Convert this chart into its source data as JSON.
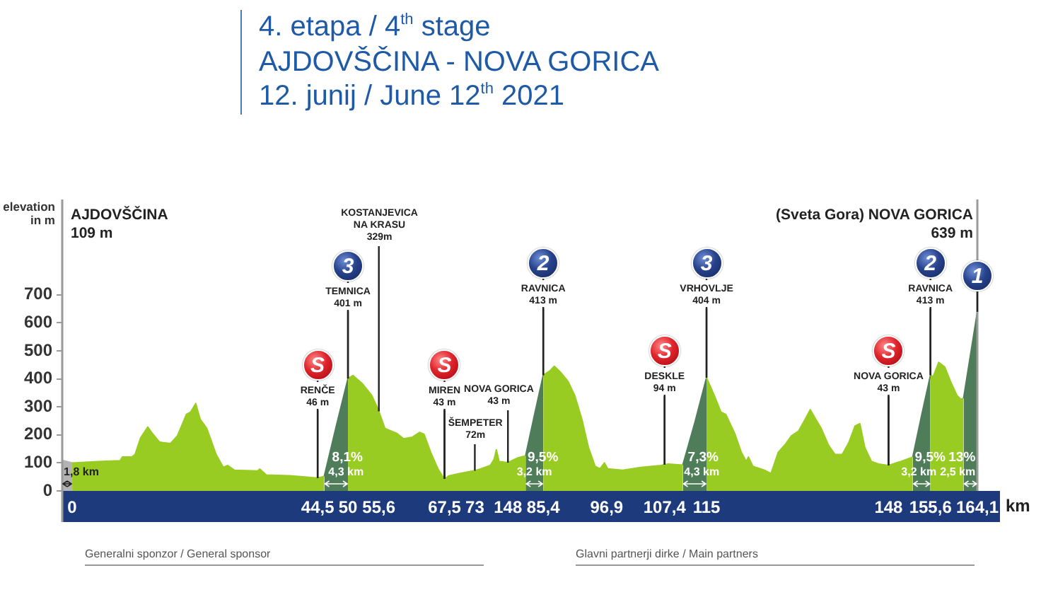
{
  "chart_data": {
    "type": "area",
    "title": "4. etapa / 4$^{th}$ stage",
    "subtitle": "AJDOVŠČINA - NOVA GORICA\n12. junij / June 12$^{th}$ 2021",
    "xlabel": "km",
    "ylabel": "elevation\nin m",
    "xlim": [
      -1.8,
      164.1
    ],
    "xticks": [
      0,
      {
        "value": 44.5,
        "label": "44,5"
      },
      50,
      {
        "value": 55.6,
        "label": "55,6"
      },
      {
        "value": 67.5,
        "label": "67,5"
      },
      73,
      {
        "value": 85.4,
        "label": "85,4"
      },
      {
        "value": 96.9,
        "label": "96,9"
      },
      {
        "value": 107.4,
        "label": "107,4"
      },
      115,
      148,
      {
        "value": 155.6,
        "label": "155,6"
      },
      {
        "value": 164.1,
        "label": "164,1"
      }
    ],
    "ylim": [
      0,
      1040
    ],
    "yticks": [
      0,
      100,
      200,
      300,
      400,
      500,
      600,
      700
    ],
    "series": [
      {
        "name": "1,8 km",
        "color": "#b3b3b3",
        "x": [
          -1.8,
          0
        ],
        "values": [
          109,
          100
        ]
      },
      {
        "color": "#99cc22",
        "x": [
          0,
          4.6,
          8.7,
          9.1,
          10.8,
          11.4,
          12.4,
          13.7,
          14.5,
          15.8,
          16.6,
          17.8,
          19.1,
          20.7,
          21.5,
          22.4,
          23.2,
          24.4,
          26.1,
          27.4,
          28.2,
          29.4,
          33.6,
          34,
          35.2,
          39.4,
          41,
          44.5,
          45.7,
          47.8,
          50,
          50.9,
          52.6,
          54.3,
          55.5,
          55.6,
          56.7,
          58.8,
          60.1,
          61.7,
          63,
          63.8,
          65,
          66.3,
          67.1,
          67.5,
          68.3,
          70,
          72.5,
          73,
          74.1,
          75.8,
          76.5,
          76.9,
          77.4,
          79,
          80.8,
          82.2,
          83.8,
          85.4,
          86.6,
          87.4,
          88.6,
          89.9,
          91.1,
          92.4,
          93.6,
          94.8,
          95.7,
          96.5,
          97.1,
          99.8,
          103.1,
          106.8,
          107.4,
          108.1,
          110.7,
          112.9,
          115,
          116.4,
          117.6,
          118.5,
          120.1,
          121.3,
          122.2,
          122.6,
          123.4,
          125.5,
          126.7,
          128,
          129.2,
          130.4,
          131.7,
          132.9,
          133.8,
          134.8,
          135.8,
          137.1,
          138.3,
          139.6,
          140.8,
          141.9,
          142.8,
          143.7,
          144.9,
          146.2,
          148,
          150.2,
          152.4,
          154,
          155.6,
          156.1,
          157.1,
          158.2,
          159.4,
          160.4,
          161.1,
          161.6
        ],
        "values": [
          100,
          105,
          108,
          121,
          121,
          130,
          189,
          228,
          206,
          175,
          172,
          169,
          197,
          273,
          282,
          312,
          256,
          223,
          130,
          84,
          91,
          74,
          71,
          78,
          57,
          54,
          52,
          46,
          52,
          null,
          401,
          412,
          383,
          341,
          290,
          284,
          223,
          206,
          186,
          192,
          209,
          202,
          138,
          79,
          54,
          43,
          54,
          61,
          71,
          72,
          79,
          91,
          113,
          147,
          105,
          101,
          118,
          125,
          null,
          413,
          428,
          445,
          422,
          391,
          341,
          256,
          155,
          88,
          79,
          100,
          79,
          74,
          84,
          91,
          94,
          96,
          92,
          null,
          404,
          341,
          282,
          273,
          206,
          138,
          105,
          121,
          88,
          74,
          62,
          138,
          164,
          197,
          214,
          256,
          290,
          256,
          223,
          164,
          130,
          130,
          172,
          231,
          240,
          155,
          105,
          96,
          91,
          105,
          121,
          null,
          413,
          408,
          459,
          442,
          383,
          341,
          327,
          330
        ]
      },
      {
        "name": "8,1%\n4,3 km",
        "color": "#4f7d5a",
        "x": [
          45.7,
          47.8,
          50
        ],
        "values": [
          52,
          225,
          401
        ]
      },
      {
        "name": "9,5%\n3,2 km",
        "color": "#4f7d5a",
        "x": [
          82.2,
          83.8,
          85.4
        ],
        "values": [
          125,
          270,
          413
        ]
      },
      {
        "name": "7,3%\n4,3 km",
        "color": "#4f7d5a",
        "x": [
          110.7,
          112.9,
          115
        ],
        "values": [
          92,
          245,
          404
        ]
      },
      {
        "name": "9,5%\n3,2 km",
        "color": "#4f7d5a",
        "x": [
          152.4,
          154,
          155.6
        ],
        "values": [
          121,
          270,
          413
        ]
      },
      {
        "name": "13%\n2,5 km",
        "color": "#4f7d5a",
        "x": [
          161.6,
          164.1
        ],
        "values": [
          330,
          639
        ]
      }
    ],
    "annotations": [
      {
        "text": "S",
        "x": 44.5,
        "y": 46
      },
      {
        "text": "RENČE\n46 m",
        "x": 44.5,
        "y": 46
      },
      {
        "text": "3",
        "x": 50,
        "y": 401
      },
      {
        "text": "TEMNICA\n401 m",
        "x": 50,
        "y": 401
      },
      {
        "text": "KOSTANJEVICA\nNA KRASU\n329m",
        "x": 55.6,
        "y": 284
      },
      {
        "text": "S",
        "x": 67.5,
        "y": 43
      },
      {
        "text": "MIREN\n43 m",
        "x": 67.5,
        "y": 43
      },
      {
        "text": "ŠEMPETER\n72m",
        "x": 73,
        "y": 72
      },
      {
        "text": "NOVA GORICA\n43 m",
        "x": 79,
        "y": 101
      },
      {
        "text": "148",
        "x": 79,
        "y": 0
      },
      {
        "text": "2",
        "x": 85.4,
        "y": 413
      },
      {
        "text": "RAVNICA\n413 m",
        "x": 85.4,
        "y": 413
      },
      {
        "text": "S",
        "x": 107.4,
        "y": 94
      },
      {
        "text": "DESKLE\n94 m",
        "x": 107.4,
        "y": 94
      },
      {
        "text": "3",
        "x": 115,
        "y": 404
      },
      {
        "text": "VRHOVLJE\n404 m",
        "x": 115,
        "y": 404
      },
      {
        "text": "S",
        "x": 148,
        "y": 91
      },
      {
        "text": "NOVA GORICA\n43 m",
        "x": 148,
        "y": 91
      },
      {
        "text": "2",
        "x": 155.6,
        "y": 413
      },
      {
        "text": "RAVNICA\n413 m",
        "x": 155.6,
        "y": 413
      },
      {
        "text": "1",
        "x": 164.1,
        "y": 639
      },
      "AJDOVŠČINA\n109 m",
      "(Sveta Gora) NOVA GORICA\n639 m",
      "Generalni sponzor / General sponsor",
      "Glavni partnerji dirke / Main partners"
    ]
  }
}
